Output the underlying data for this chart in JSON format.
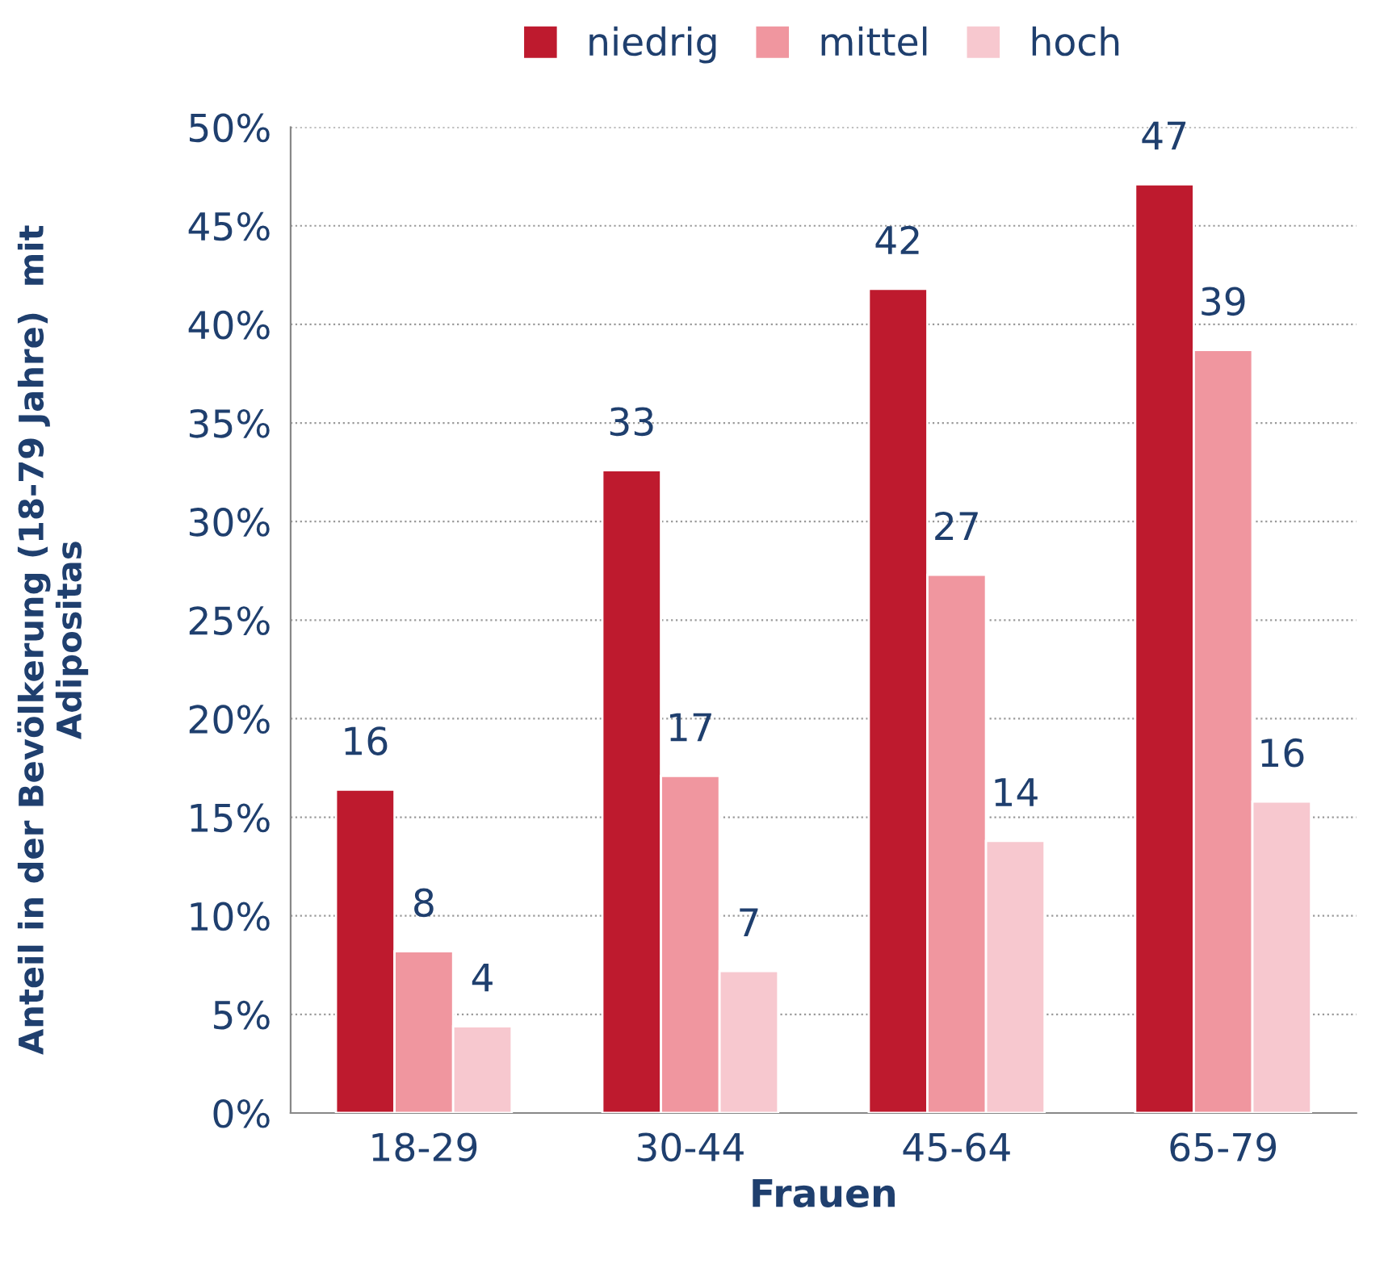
{
  "chart_data": {
    "type": "bar",
    "xlabel": "Frauen",
    "ylabel": "Anteil in der Bevölkerung (18-79 Jahre)  mit\nAdipositas",
    "categories": [
      "18-29",
      "30-44",
      "45-64",
      "65-79"
    ],
    "series": [
      {
        "name": "niedrig",
        "color": "#be1a2e",
        "values": [
          16.4,
          32.6,
          41.8,
          47.1
        ],
        "value_labels": [
          "16",
          "33",
          "42",
          "47"
        ]
      },
      {
        "name": "mittel",
        "color": "#f0969f",
        "values": [
          8.2,
          17.1,
          27.3,
          38.7
        ],
        "value_labels": [
          "8",
          "17",
          "27",
          "39"
        ]
      },
      {
        "name": "hoch",
        "color": "#f7c8cf",
        "values": [
          4.4,
          7.2,
          13.8,
          15.8
        ],
        "value_labels": [
          "4",
          "7",
          "14",
          "16"
        ]
      }
    ],
    "ylim": [
      0,
      50
    ],
    "yticks": [
      {
        "value": 0,
        "label": "0%"
      },
      {
        "value": 5,
        "label": "5%"
      },
      {
        "value": 10,
        "label": "10%"
      },
      {
        "value": 15,
        "label": "15%"
      },
      {
        "value": 20,
        "label": "20%"
      },
      {
        "value": 25,
        "label": "25%"
      },
      {
        "value": 30,
        "label": "30%"
      },
      {
        "value": 35,
        "label": "35%"
      },
      {
        "value": 40,
        "label": "40%"
      },
      {
        "value": 45,
        "label": "45%"
      },
      {
        "value": 50,
        "label": "50%"
      }
    ],
    "grid": "y",
    "legend": "top"
  }
}
